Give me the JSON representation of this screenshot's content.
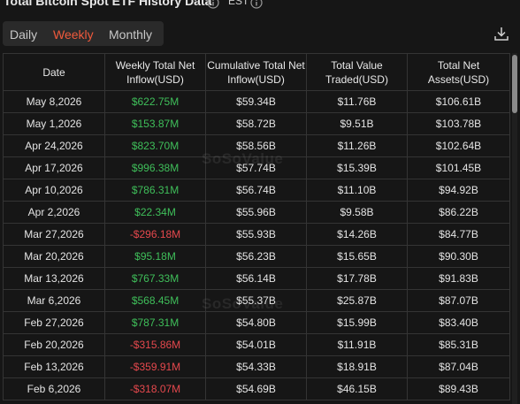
{
  "header": {
    "title": "Total Bitcoin Spot ETF History Data",
    "timezone": "EST"
  },
  "tabs": [
    "Daily",
    "Weekly",
    "Monthly"
  ],
  "active_tab": 1,
  "watermark": "SoSoValue",
  "table": {
    "columns": [
      "Date",
      "Weekly Total Net Inflow(USD)",
      "Cumulative Total Net Inflow(USD)",
      "Total Value Traded(USD)",
      "Total Net Assets(USD)"
    ],
    "rows": [
      [
        "May 8,2026",
        "$622.75M",
        "$59.34B",
        "$11.76B",
        "$106.61B"
      ],
      [
        "May 1,2026",
        "$153.87M",
        "$58.72B",
        "$9.51B",
        "$103.78B"
      ],
      [
        "Apr 24,2026",
        "$823.70M",
        "$58.56B",
        "$11.26B",
        "$102.64B"
      ],
      [
        "Apr 17,2026",
        "$996.38M",
        "$57.74B",
        "$15.39B",
        "$101.45B"
      ],
      [
        "Apr 10,2026",
        "$786.31M",
        "$56.74B",
        "$11.10B",
        "$94.92B"
      ],
      [
        "Apr 2,2026",
        "$22.34M",
        "$55.96B",
        "$9.58B",
        "$86.22B"
      ],
      [
        "Mar 27,2026",
        "-$296.18M",
        "$55.93B",
        "$14.26B",
        "$84.77B"
      ],
      [
        "Mar 20,2026",
        "$95.18M",
        "$56.23B",
        "$15.65B",
        "$90.30B"
      ],
      [
        "Mar 13,2026",
        "$767.33M",
        "$56.14B",
        "$17.78B",
        "$91.83B"
      ],
      [
        "Mar 6,2026",
        "$568.45M",
        "$55.37B",
        "$25.87B",
        "$87.07B"
      ],
      [
        "Feb 27,2026",
        "$787.31M",
        "$54.80B",
        "$15.99B",
        "$83.40B"
      ],
      [
        "Feb 20,2026",
        "-$315.86M",
        "$54.01B",
        "$11.91B",
        "$85.31B"
      ],
      [
        "Feb 13,2026",
        "-$359.91M",
        "$54.33B",
        "$18.91B",
        "$87.04B"
      ],
      [
        "Feb 6,2026",
        "-$318.07M",
        "$54.69B",
        "$46.15B",
        "$89.43B"
      ]
    ]
  }
}
